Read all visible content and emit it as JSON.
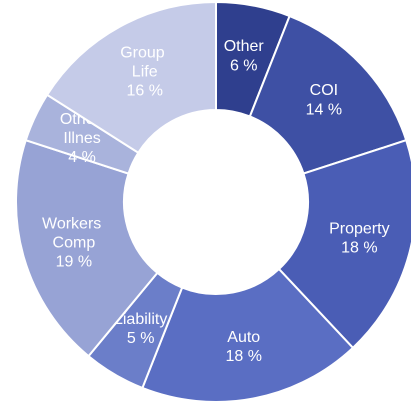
{
  "chart_data": {
    "type": "donut",
    "categories": [
      "Other",
      "COI",
      "Property",
      "Auto",
      "Liability",
      "Workers Comp",
      "Other Illnes",
      "Group Life"
    ],
    "values": [
      6,
      14,
      18,
      18,
      5,
      19,
      4,
      16
    ],
    "value_labels": [
      "6 %",
      "14 %",
      "18 %",
      "18 %",
      "5 %",
      "19 %",
      "4 %",
      "16 %"
    ],
    "colors": [
      "#2f3f8e",
      "#3e50a4",
      "#4a5db5",
      "#5a6ec3",
      "#6b7ec9",
      "#97a3d5",
      "#a9b3dc",
      "#c5cbe8"
    ]
  }
}
